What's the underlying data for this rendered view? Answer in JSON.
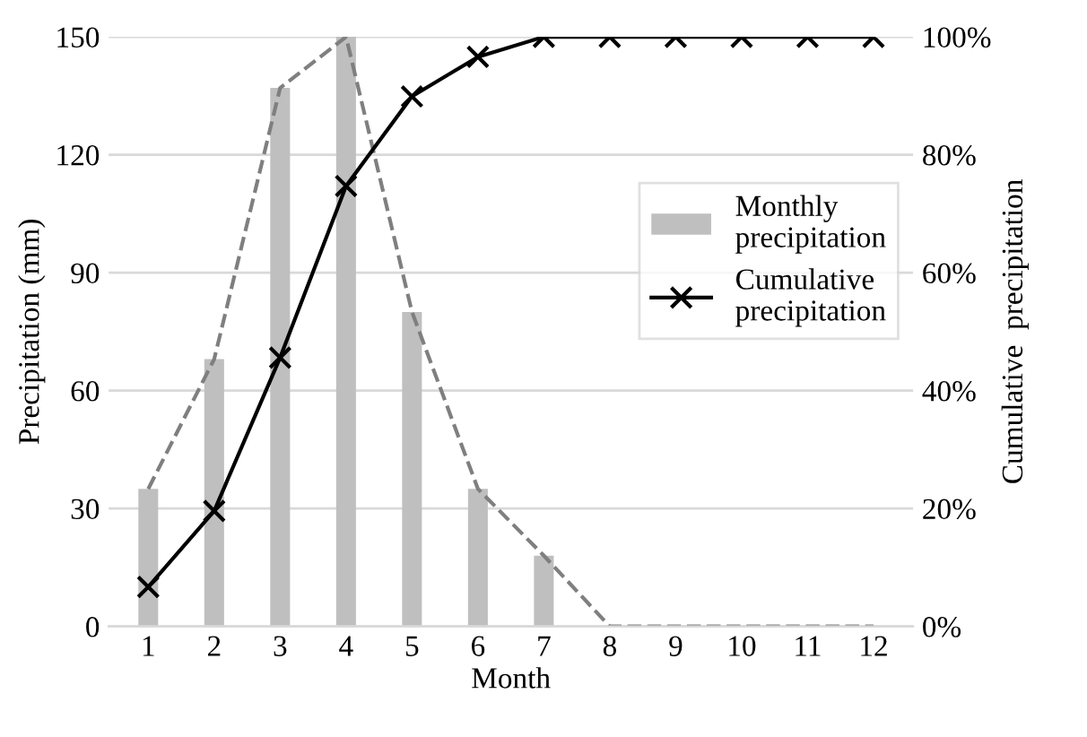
{
  "chart_data": {
    "type": "bar",
    "xlabel": "Month",
    "ylabel": "Precipitation (mm)",
    "y2label": "Cumulative  precipitation",
    "categories": [
      "1",
      "2",
      "3",
      "4",
      "5",
      "6",
      "7",
      "8",
      "9",
      "10",
      "11",
      "12"
    ],
    "series": [
      {
        "name": "Monthly\nprecipitation",
        "color": "#bfbfbf",
        "values": [
          35,
          68,
          137,
          150,
          80,
          35,
          18,
          0,
          0,
          0,
          0,
          0
        ]
      },
      {
        "type": "line",
        "color": "#7f7f7f",
        "line_style": "dashed",
        "marker": "none",
        "values": [
          35,
          68,
          137,
          150,
          80,
          35,
          18,
          0,
          0,
          0,
          0,
          0
        ]
      },
      {
        "name": "Cumulative\nprecipitation",
        "type": "line",
        "axis": "y2",
        "color": "#000000",
        "line_style": "solid",
        "marker": "cross",
        "values": [
          6.7,
          19.6,
          45.6,
          74.7,
          89.9,
          96.6,
          100,
          100,
          100,
          100,
          100,
          100
        ]
      }
    ],
    "ylim": [
      0,
      150
    ],
    "yticks": [
      0,
      30,
      60,
      90,
      120,
      150
    ],
    "y2lim": [
      0,
      100
    ],
    "y2ticks": [
      {
        "value": 0,
        "label": "0%"
      },
      {
        "value": 20,
        "label": "20%"
      },
      {
        "value": 40,
        "label": "40%"
      },
      {
        "value": 60,
        "label": "60%"
      },
      {
        "value": 80,
        "label": "80%"
      },
      {
        "value": 100,
        "label": "100%"
      }
    ],
    "grid": "y",
    "legend": "right"
  }
}
